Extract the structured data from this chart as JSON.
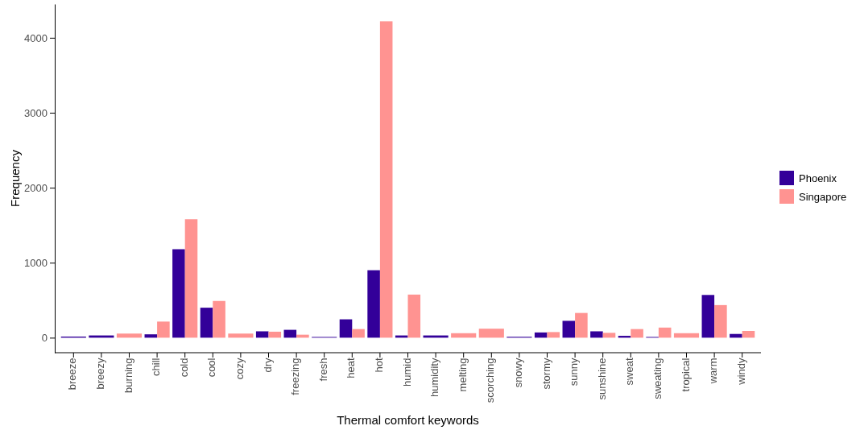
{
  "chart_data": {
    "type": "bar",
    "xlabel": "Thermal comfort keywords",
    "ylabel": "Frequency",
    "categories": [
      "breeze",
      "breezy",
      "burning",
      "chill",
      "cold",
      "cool",
      "cozy",
      "dry",
      "freezing",
      "fresh",
      "heat",
      "hot",
      "humid",
      "humidity",
      "melting",
      "scorching",
      "snowy",
      "stormy",
      "sunny",
      "sunshine",
      "sweat",
      "sweating",
      "tropical",
      "warm",
      "windy"
    ],
    "series": [
      {
        "name": "Phoenix",
        "color": "#330099",
        "values": [
          15,
          30,
          null,
          45,
          1180,
          400,
          null,
          85,
          105,
          10,
          245,
          900,
          30,
          30,
          null,
          null,
          12,
          70,
          225,
          85,
          25,
          10,
          null,
          570,
          50
        ]
      },
      {
        "name": "Singapore",
        "color": "#ff9391",
        "values": [
          null,
          null,
          55,
          215,
          1580,
          490,
          55,
          80,
          40,
          null,
          115,
          4220,
          575,
          null,
          60,
          120,
          null,
          75,
          330,
          65,
          115,
          135,
          60,
          435,
          90
        ]
      }
    ],
    "ylim": [
      -200,
      4450
    ],
    "yticks": [
      0,
      1000,
      2000,
      3000,
      4000
    ],
    "grid": false,
    "legend": "right"
  }
}
